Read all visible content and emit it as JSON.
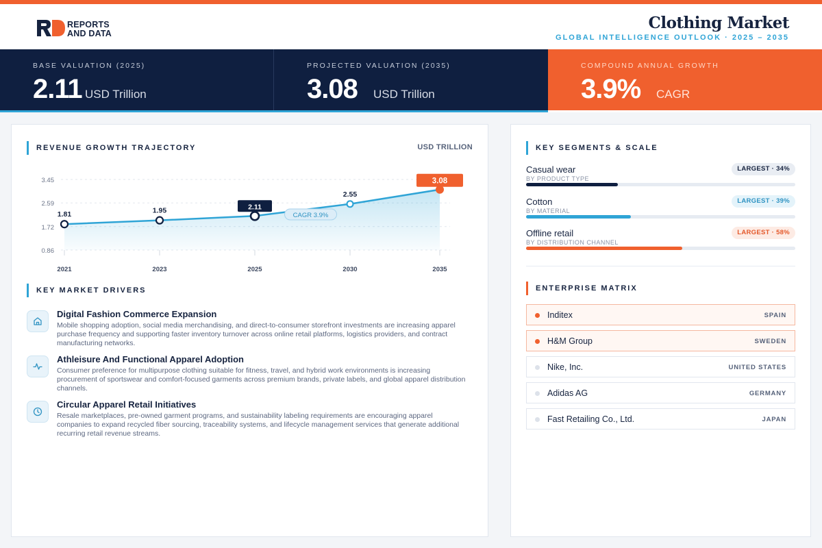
{
  "brand": {
    "line1": "REPORTS",
    "line2": "AND DATA"
  },
  "header": {
    "title": "Clothing Market",
    "subtitle": "GLOBAL INTELLIGENCE OUTLOOK  ·  2025 – 2035"
  },
  "kpis": [
    {
      "label": "BASE VALUATION (2025)",
      "value": "2.11",
      "unit": "USD Trillion"
    },
    {
      "label": "PROJECTED VALUATION (2035)",
      "value": "3.08",
      "unit": "USD Trillion"
    },
    {
      "label": "COMPOUND ANNUAL GROWTH",
      "value": "3.9%",
      "unit": "CAGR"
    }
  ],
  "chart_section": {
    "title": "REVENUE GROWTH TRAJECTORY",
    "unit": "USD TRILLION"
  },
  "chart_data": {
    "type": "line",
    "x": [
      "2021",
      "2023",
      "2025",
      "2030",
      "2035"
    ],
    "series": [
      {
        "values": [
          1.81,
          1.95,
          2.11,
          2.55,
          3.08
        ]
      }
    ],
    "data_labels": [
      "1.81",
      "1.95",
      "2.11",
      "2.55",
      "3.08"
    ],
    "y_ticks": [
      "3.45",
      "2.59",
      "1.72",
      "0.86"
    ],
    "ylim": [
      0.86,
      3.45
    ],
    "annotation": "CAGR 3.9%",
    "grid": true,
    "highlight": {
      "2025": "dark",
      "2035": "orange"
    }
  },
  "drivers_section": {
    "title": "KEY MARKET DRIVERS"
  },
  "drivers": [
    {
      "icon": "storefront-icon",
      "title": "Digital Fashion Commerce Expansion",
      "desc": "Mobile shopping adoption, social media merchandising, and direct-to-consumer storefront investments are increasing apparel purchase frequency and supporting faster inventory turnover across online retail platforms, logistics providers, and contract manufacturing networks."
    },
    {
      "icon": "pulse-icon",
      "title": "Athleisure And Functional Apparel Adoption",
      "desc": "Consumer preference for multipurpose clothing suitable for fitness, travel, and hybrid work environments is increasing procurement of sportswear and comfort-focused garments across premium brands, private labels, and global apparel distribution channels."
    },
    {
      "icon": "clock-icon",
      "title": "Circular Apparel Retail Initiatives",
      "desc": "Resale marketplaces, pre-owned garment programs, and sustainability labeling requirements are encouraging apparel companies to expand recycled fiber sourcing, traceability systems, and lifecycle management services that generate additional recurring retail revenue streams."
    }
  ],
  "segments_section": {
    "title": "KEY SEGMENTS & SCALE"
  },
  "segments": [
    {
      "name": "Casual wear",
      "category": "BY PRODUCT TYPE",
      "badge": "LARGEST · 34%",
      "share": 34,
      "color": "#0f1f40",
      "badge_bg": "#e9edf3",
      "badge_fg": "#16233f"
    },
    {
      "name": "Cotton",
      "category": "BY MATERIAL",
      "badge": "LARGEST · 39%",
      "share": 39,
      "color": "#2fa4d6",
      "badge_bg": "#e4f3fa",
      "badge_fg": "#2f93c2"
    },
    {
      "name": "Offline retail",
      "category": "BY DISTRIBUTION CHANNEL",
      "badge": "LARGEST · 58%",
      "share": 58,
      "color": "#f0602e",
      "badge_bg": "#fdebe4",
      "badge_fg": "#e4582a"
    }
  ],
  "enterprise_section": {
    "title": "ENTERPRISE MATRIX"
  },
  "enterprises": [
    {
      "name": "Inditex",
      "country": "SPAIN",
      "highlight": true
    },
    {
      "name": "H&M Group",
      "country": "SWEDEN",
      "highlight": true
    },
    {
      "name": "Nike, Inc.",
      "country": "UNITED STATES",
      "highlight": false
    },
    {
      "name": "Adidas AG",
      "country": "GERMANY",
      "highlight": false
    },
    {
      "name": "Fast Retailing Co., Ltd.",
      "country": "JAPAN",
      "highlight": false
    }
  ]
}
